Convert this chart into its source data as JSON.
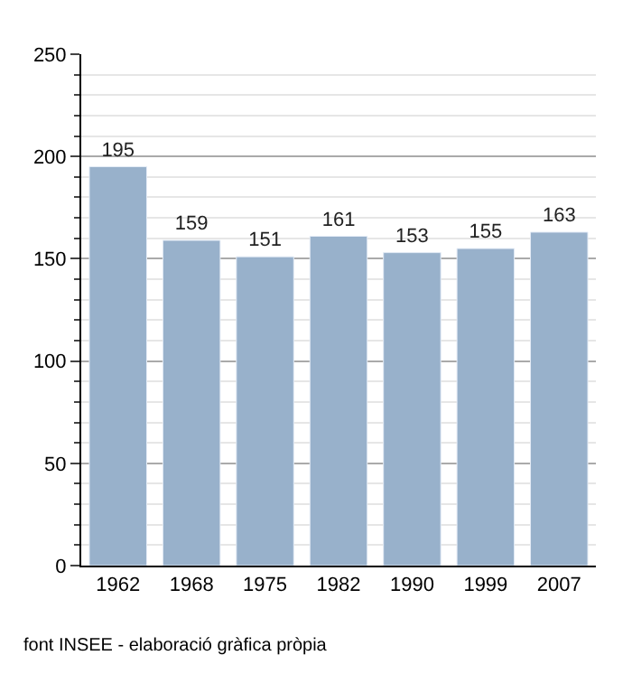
{
  "chart_data": {
    "type": "bar",
    "categories": [
      "1962",
      "1968",
      "1975",
      "1982",
      "1990",
      "1999",
      "2007"
    ],
    "values": [
      195,
      159,
      151,
      161,
      153,
      155,
      163
    ],
    "color": "#98b1cb",
    "data_labels": true,
    "ylim": [
      0,
      250
    ],
    "yticks": [
      0,
      50,
      100,
      150,
      200,
      250
    ],
    "grid": "y",
    "legend": false,
    "annotations": [
      "font INSEE - elaboració gràfica pròpia"
    ]
  }
}
